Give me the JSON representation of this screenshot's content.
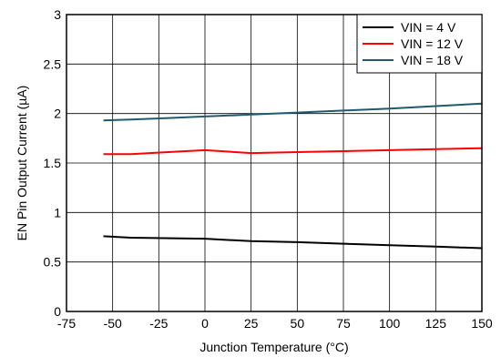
{
  "chart_data": {
    "type": "line",
    "title": "",
    "xlabel": "Junction Temperature (°C)",
    "ylabel": "EN Pin Output Current (µA)",
    "xlim": [
      -75,
      150
    ],
    "ylim": [
      0,
      3
    ],
    "xticks": [
      -75,
      -50,
      -25,
      0,
      25,
      50,
      75,
      100,
      125,
      150
    ],
    "yticks": [
      0,
      0.5,
      1,
      1.5,
      2,
      2.5,
      3
    ],
    "xtick_labels": [
      "-75",
      "-50",
      "-25",
      "0",
      "25",
      "50",
      "75",
      "100",
      "125",
      "150"
    ],
    "ytick_labels": [
      "0",
      "0.5",
      "1",
      "1.5",
      "2",
      "2.5",
      "3"
    ],
    "grid": true,
    "legend_position": "top-right",
    "series": [
      {
        "name": "VIN = 4 V",
        "color": "#000000",
        "x": [
          -55,
          -40,
          0,
          25,
          50,
          75,
          100,
          125,
          150
        ],
        "y": [
          0.76,
          0.745,
          0.735,
          0.71,
          0.7,
          0.685,
          0.67,
          0.655,
          0.64
        ]
      },
      {
        "name": "VIN = 12 V",
        "color": "#ff0000",
        "x": [
          -55,
          -40,
          -20,
          0,
          25,
          50,
          75,
          100,
          125,
          150
        ],
        "y": [
          1.59,
          1.59,
          1.61,
          1.63,
          1.6,
          1.61,
          1.62,
          1.63,
          1.64,
          1.65
        ]
      },
      {
        "name": "VIN = 18 V",
        "color": "#1f5a6e",
        "x": [
          -55,
          -40,
          -20,
          0,
          25,
          50,
          75,
          100,
          125,
          150
        ],
        "y": [
          1.93,
          1.94,
          1.955,
          1.97,
          1.99,
          2.01,
          2.03,
          2.05,
          2.075,
          2.1
        ]
      }
    ]
  }
}
